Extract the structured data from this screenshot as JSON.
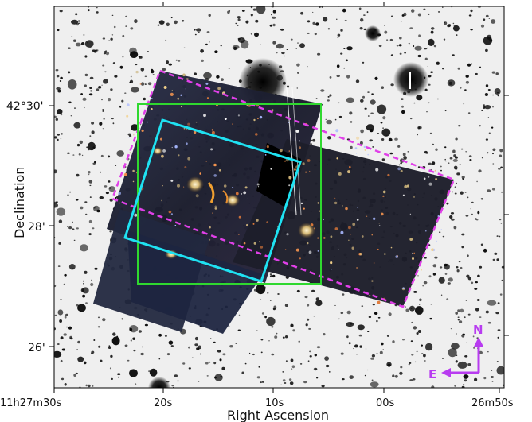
{
  "axes": {
    "xlabel": "Right Ascension",
    "ylabel": "Declination",
    "x_ticks": [
      "11h27m30s",
      "20s",
      "10s",
      "00s",
      "26m50s"
    ],
    "y_ticks": [
      "42°30'",
      "28'",
      "26'"
    ]
  },
  "compass": {
    "north": "N",
    "east": "E",
    "color": "#b83cf0"
  },
  "colors": {
    "green_box": "#2fd82f",
    "cyan_box": "#1fe2f2",
    "magenta_dashed": "#e040e8",
    "background": "#efefef",
    "sources": "#0b0b0b"
  }
}
